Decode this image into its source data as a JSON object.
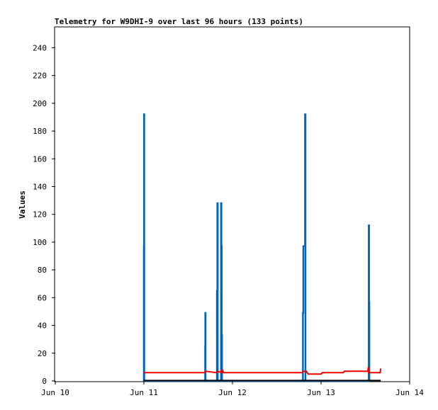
{
  "chart_data": {
    "type": "line",
    "title": "Telemetry for W9DHI-9 over last 96 hours (133 points)",
    "xlabel": "",
    "ylabel": "Values",
    "x_axis_type": "date",
    "xlim": [
      "2025-06-10T00:00",
      "2025-06-14T00:00"
    ],
    "ylim": [
      0,
      255
    ],
    "x_tick_labels": [
      "Jun 10",
      "Jun 11",
      "Jun 12",
      "Jun 13",
      "Jun 14"
    ],
    "x_tick_values": [
      "2025-06-10T00:00",
      "2025-06-11T00:00",
      "2025-06-12T00:00",
      "2025-06-13T00:00",
      "2025-06-14T00:00"
    ],
    "y_ticks": [
      0,
      20,
      40,
      60,
      80,
      100,
      120,
      140,
      160,
      180,
      200,
      220,
      240
    ],
    "grid": false,
    "legend": "none",
    "series": [
      {
        "color": "#0066bb",
        "style": "spikes",
        "points": [
          [
            "2025-06-11T00:00",
            0
          ],
          [
            "2025-06-11T00:00",
            97
          ],
          [
            "2025-06-11T00:03",
            97
          ],
          [
            "2025-06-11T00:03",
            192
          ],
          [
            "2025-06-11T00:06",
            192
          ],
          [
            "2025-06-11T00:06",
            0
          ],
          [
            "2025-06-11T16:36",
            0
          ],
          [
            "2025-06-11T16:36",
            25
          ],
          [
            "2025-06-11T16:39",
            25
          ],
          [
            "2025-06-11T16:39",
            49
          ],
          [
            "2025-06-11T16:42",
            49
          ],
          [
            "2025-06-11T16:42",
            0
          ],
          [
            "2025-06-11T19:48",
            0
          ],
          [
            "2025-06-11T19:48",
            65
          ],
          [
            "2025-06-11T19:55",
            65
          ],
          [
            "2025-06-11T19:55",
            128
          ],
          [
            "2025-06-11T20:00",
            128
          ],
          [
            "2025-06-11T20:00",
            0
          ],
          [
            "2025-06-11T20:55",
            0
          ],
          [
            "2025-06-11T20:55",
            128
          ],
          [
            "2025-06-11T21:00",
            128
          ],
          [
            "2025-06-11T21:00",
            97
          ],
          [
            "2025-06-11T21:05",
            97
          ],
          [
            "2025-06-11T21:05",
            33
          ],
          [
            "2025-06-11T21:10",
            33
          ],
          [
            "2025-06-11T21:10",
            0
          ],
          [
            "2025-06-12T19:05",
            0
          ],
          [
            "2025-06-12T19:05",
            49
          ],
          [
            "2025-06-12T19:12",
            49
          ],
          [
            "2025-06-12T19:12",
            97
          ],
          [
            "2025-06-12T19:40",
            97
          ],
          [
            "2025-06-12T19:40",
            192
          ],
          [
            "2025-06-12T19:46",
            192
          ],
          [
            "2025-06-12T19:46",
            0
          ],
          [
            "2025-06-13T12:55",
            0
          ],
          [
            "2025-06-13T12:55",
            112
          ],
          [
            "2025-06-13T13:00",
            112
          ],
          [
            "2025-06-13T13:00",
            57
          ],
          [
            "2025-06-13T13:05",
            57
          ],
          [
            "2025-06-13T13:05",
            0
          ]
        ]
      },
      {
        "color": "#ee0000",
        "style": "line",
        "points": [
          [
            "2025-06-10T23:55",
            6
          ],
          [
            "2025-06-11T16:30",
            6
          ],
          [
            "2025-06-11T16:40",
            7
          ],
          [
            "2025-06-11T19:40",
            6
          ],
          [
            "2025-06-11T20:00",
            7
          ],
          [
            "2025-06-11T21:00",
            6
          ],
          [
            "2025-06-11T21:15",
            8
          ],
          [
            "2025-06-11T21:35",
            6
          ],
          [
            "2025-06-12T19:00",
            6
          ],
          [
            "2025-06-12T19:20",
            7
          ],
          [
            "2025-06-12T20:00",
            7
          ],
          [
            "2025-06-12T20:30",
            5
          ],
          [
            "2025-06-13T00:00",
            5
          ],
          [
            "2025-06-13T00:20",
            6
          ],
          [
            "2025-06-13T06:00",
            6
          ],
          [
            "2025-06-13T06:20",
            7
          ],
          [
            "2025-06-13T12:40",
            7
          ],
          [
            "2025-06-13T12:48",
            10
          ],
          [
            "2025-06-13T12:55",
            6
          ],
          [
            "2025-06-13T16:00",
            6
          ],
          [
            "2025-06-13T16:10",
            9
          ]
        ]
      },
      {
        "color": "#000000",
        "style": "line",
        "points": [
          [
            "2025-06-10T23:55",
            0.3
          ],
          [
            "2025-06-13T16:10",
            0.3
          ]
        ]
      }
    ]
  }
}
